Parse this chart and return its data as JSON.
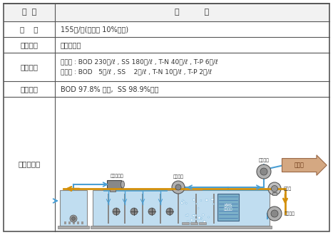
{
  "col1_header": "구  분",
  "col2_header": "내          용",
  "rows": [
    {
      "label": "용    량",
      "content": "155㎥/일(여유율 10%고려)"
    },
    {
      "label": "처리공법",
      "content": "막분리공법"
    },
    {
      "label": "처리수질",
      "content_line1": "유입수 : BOD 230㎎/ℓ , SS 180㎎/ℓ , T-N 40㎎/ℓ , T-P 6㎎/ℓ",
      "content_line2": "유출수 : BOD   5㎎/ℓ , SS    2㎎/ℓ , T-N 10㎎/ℓ , T-P 2㎎/ℓ"
    },
    {
      "label": "처리효율",
      "content": "BOD 97.8% 이상,  SS 98.9%이상"
    }
  ],
  "diagram_label": "처리계통도",
  "bg_color": "#ffffff",
  "border_color": "#555555",
  "text_color": "#333333",
  "blue_color": "#4a9fd4",
  "orange_color": "#d4900a",
  "tank_blue": "#c0ddf0",
  "tank_border": "#888888",
  "pump_fill": "#b0b0b0",
  "pump_border": "#555555",
  "kms_fill": "#7aaec8",
  "treat_arrow_fill": "#d4a882",
  "treat_arrow_border": "#996644",
  "treat_text": "#663311"
}
